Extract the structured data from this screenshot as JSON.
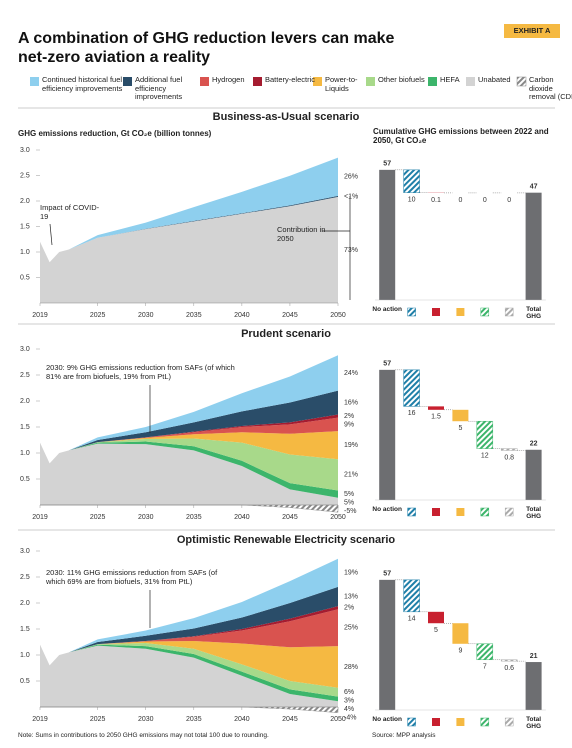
{
  "title": "A combination of GHG reduction levers can make net-zero aviation a reality",
  "exhibit": "EXHIBIT A",
  "legend": [
    {
      "name": "Continued historical fuel efficiency improvements",
      "color": "#8ecfee"
    },
    {
      "name": "Additional fuel efficiency improvements",
      "color": "#2a4d69"
    },
    {
      "name": "Hydrogen",
      "color": "#d9534f"
    },
    {
      "name": "Battery-electric",
      "color": "#a51c30"
    },
    {
      "name": "Power-to-Liquids",
      "color": "#f5b942"
    },
    {
      "name": "Other biofuels",
      "color": "#a8d98a"
    },
    {
      "name": "HEFA",
      "color": "#3cb56b"
    },
    {
      "name": "Unabated",
      "color": "#d3d3d3"
    },
    {
      "name": "Carbon dioxide removal (CDR)",
      "color": "#888888",
      "hatch": true
    }
  ],
  "note": "Note: Sums in contributions to 2050 GHG emissions may not total 100 due to rounding.",
  "source": "Source: MPP analysis",
  "chart_data": [
    {
      "type": "area",
      "title": "Business-as-Usual scenario",
      "ylabel": "GHG emissions reduction, Gt CO₂e (billion tonnes)",
      "x": [
        2019,
        2020,
        2021,
        2022,
        2025,
        2030,
        2035,
        2040,
        2045,
        2050
      ],
      "xlim": [
        2019,
        2050
      ],
      "xticks": [
        2019,
        2025,
        2030,
        2035,
        2040,
        2045,
        2050
      ],
      "ylim": [
        0,
        3
      ],
      "yticks": [
        0.5,
        {
          "value": 1,
          "label": "1.0"
        },
        1.5,
        {
          "value": 2,
          "label": "2.0"
        },
        2.5,
        {
          "value": 3,
          "label": "3.0"
        }
      ],
      "series": [
        {
          "color": "#d3d3d3",
          "values": [
            1.2,
            0.8,
            1.0,
            1.05,
            1.28,
            1.45,
            1.6,
            1.75,
            1.9,
            2.08
          ]
        },
        {
          "color": "#2a4d69",
          "values": [
            0,
            0,
            0,
            0,
            0,
            0.005,
            0.01,
            0.01,
            0.015,
            0.02
          ]
        },
        {
          "color": "#8ecfee",
          "values": [
            0,
            0,
            0,
            0,
            0.05,
            0.12,
            0.27,
            0.42,
            0.58,
            0.75
          ]
        }
      ],
      "share_labels": [
        "73%",
        "<1%",
        "26%"
      ],
      "annotations": [
        "Impact of COVID-19",
        "Contribution in 2050"
      ]
    },
    {
      "type": "waterfall",
      "title": "Cumulative GHG emissions between 2022 and 2050, Gt CO₂e",
      "categories": [
        "No action",
        null,
        null,
        null,
        null,
        null,
        "Total GHG"
      ],
      "values": [
        57,
        10,
        0.1,
        0,
        0,
        0,
        47
      ],
      "ylim": [
        0,
        60
      ],
      "colors": [
        "#6d6e71",
        "#1f7fa8",
        "#c8202f",
        "#f5b942",
        "#3cb56b",
        "#aaaaaa",
        "#6d6e71"
      ],
      "hatched": [
        false,
        true,
        false,
        false,
        true,
        true,
        false
      ]
    },
    {
      "type": "area",
      "title": "Prudent scenario",
      "x": [
        2019,
        2020,
        2021,
        2022,
        2025,
        2030,
        2035,
        2040,
        2045,
        2050
      ],
      "xlim": [
        2019,
        2050
      ],
      "xticks": [
        2019,
        2025,
        2030,
        2035,
        2040,
        2045,
        2050
      ],
      "ylim": [
        0,
        3
      ],
      "yticks": [
        0.5,
        {
          "value": 1,
          "label": "1.0"
        },
        1.5,
        {
          "value": 2,
          "label": "2.0"
        },
        2.5,
        {
          "value": 3,
          "label": "3.0"
        }
      ],
      "series": [
        {
          "color": "#d3d3d3",
          "values": [
            1.2,
            0.8,
            1.0,
            1.05,
            1.18,
            1.17,
            1.05,
            0.75,
            0.3,
            0.14
          ]
        },
        {
          "color": "#3cb56b",
          "values": [
            0,
            0,
            0,
            0,
            0.02,
            0.05,
            0.08,
            0.1,
            0.12,
            0.14
          ]
        },
        {
          "color": "#a8d98a",
          "values": [
            0,
            0,
            0,
            0,
            0.01,
            0.05,
            0.15,
            0.35,
            0.55,
            0.6
          ]
        },
        {
          "color": "#f5b942",
          "values": [
            0,
            0,
            0,
            0,
            0,
            0.02,
            0.08,
            0.2,
            0.4,
            0.54
          ]
        },
        {
          "color": "#d9534f",
          "values": [
            0,
            0,
            0,
            0,
            0,
            0.01,
            0.04,
            0.1,
            0.18,
            0.26
          ]
        },
        {
          "color": "#a51c30",
          "values": [
            0,
            0,
            0,
            0,
            0,
            0,
            0.01,
            0.02,
            0.04,
            0.06
          ]
        },
        {
          "color": "#2a4d69",
          "values": [
            0,
            0,
            0,
            0,
            0.04,
            0.1,
            0.18,
            0.28,
            0.38,
            0.46
          ]
        },
        {
          "color": "#8ecfee",
          "values": [
            0,
            0,
            0,
            0,
            0.05,
            0.1,
            0.2,
            0.35,
            0.5,
            0.68
          ]
        },
        {
          "color": "#888888",
          "hatch": true,
          "values": [
            0,
            0,
            0,
            0,
            0,
            0,
            0,
            0,
            -0.05,
            -0.14
          ]
        }
      ],
      "share_labels": [
        "5%",
        "5%",
        "21%",
        "19%",
        "9%",
        "2%",
        "16%",
        "24%",
        "-5%"
      ],
      "annotations": [
        "2030: 9% GHG emissions reduction from SAFs (of which 81% are from biofuels, 19% from PtL)"
      ]
    },
    {
      "type": "waterfall",
      "categories": [
        "No action",
        null,
        null,
        null,
        null,
        null,
        "Total GHG"
      ],
      "values": [
        57,
        16,
        1.5,
        5,
        12,
        0.8,
        22
      ],
      "ylim": [
        0,
        60
      ],
      "colors": [
        "#6d6e71",
        "#1f7fa8",
        "#c8202f",
        "#f5b942",
        "#3cb56b",
        "#aaaaaa",
        "#6d6e71"
      ],
      "hatched": [
        false,
        true,
        false,
        false,
        true,
        true,
        false
      ]
    },
    {
      "type": "area",
      "title": "Optimistic Renewable Electricity scenario",
      "x": [
        2019,
        2020,
        2021,
        2022,
        2025,
        2030,
        2035,
        2040,
        2045,
        2050
      ],
      "xlim": [
        2019,
        2050
      ],
      "xticks": [
        2019,
        2025,
        2030,
        2035,
        2040,
        2045,
        2050
      ],
      "ylim": [
        0,
        3
      ],
      "yticks": [
        0.5,
        {
          "value": 1,
          "label": "1.0"
        },
        1.5,
        {
          "value": 2,
          "label": "2.0"
        },
        2.5,
        {
          "value": 3,
          "label": "3.0"
        }
      ],
      "series": [
        {
          "color": "#d3d3d3",
          "values": [
            1.2,
            0.8,
            1.0,
            1.05,
            1.18,
            1.12,
            0.95,
            0.6,
            0.25,
            0.11
          ]
        },
        {
          "color": "#3cb56b",
          "values": [
            0,
            0,
            0,
            0,
            0.02,
            0.05,
            0.07,
            0.08,
            0.09,
            0.09
          ]
        },
        {
          "color": "#a8d98a",
          "values": [
            0,
            0,
            0,
            0,
            0.01,
            0.06,
            0.1,
            0.14,
            0.16,
            0.17
          ]
        },
        {
          "color": "#f5b942",
          "values": [
            0,
            0,
            0,
            0,
            0,
            0.03,
            0.15,
            0.4,
            0.65,
            0.8
          ]
        },
        {
          "color": "#d9534f",
          "values": [
            0,
            0,
            0,
            0,
            0,
            0.01,
            0.08,
            0.25,
            0.5,
            0.71
          ]
        },
        {
          "color": "#a51c30",
          "values": [
            0,
            0,
            0,
            0,
            0,
            0,
            0.01,
            0.03,
            0.05,
            0.06
          ]
        },
        {
          "color": "#2a4d69",
          "values": [
            0,
            0,
            0,
            0,
            0.04,
            0.1,
            0.15,
            0.22,
            0.3,
            0.37
          ]
        },
        {
          "color": "#8ecfee",
          "values": [
            0,
            0,
            0,
            0,
            0.05,
            0.1,
            0.2,
            0.3,
            0.42,
            0.54
          ]
        },
        {
          "color": "#888888",
          "hatch": true,
          "values": [
            0,
            0,
            0,
            0,
            0,
            0,
            0,
            0,
            -0.04,
            -0.11
          ]
        }
      ],
      "share_labels": [
        "4%",
        "3%",
        "6%",
        "28%",
        "25%",
        "2%",
        "13%",
        "19%",
        "-4%"
      ],
      "annotations": [
        "2030: 11% GHG emissions reduction from SAFs (of which 69% are from biofuels, 31% from PtL)"
      ]
    },
    {
      "type": "waterfall",
      "categories": [
        "No action",
        null,
        null,
        null,
        null,
        null,
        "Total GHG"
      ],
      "values": [
        57,
        14,
        5,
        9,
        7,
        0.6,
        21
      ],
      "ylim": [
        0,
        60
      ],
      "colors": [
        "#6d6e71",
        "#1f7fa8",
        "#c8202f",
        "#f5b942",
        "#3cb56b",
        "#aaaaaa",
        "#6d6e71"
      ],
      "hatched": [
        false,
        true,
        false,
        false,
        true,
        true,
        false
      ]
    }
  ]
}
